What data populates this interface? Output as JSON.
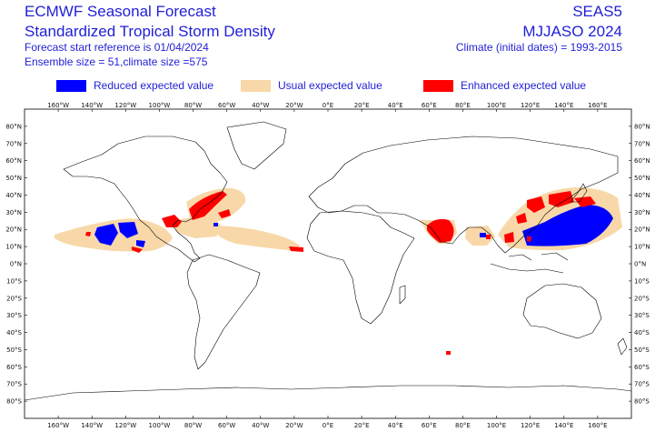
{
  "header": {
    "title_line1": "ECMWF Seasonal Forecast",
    "title_line2": "Standardized Tropical Storm Density",
    "start_reference": "Forecast start reference is 01/04/2024",
    "ensemble": "Ensemble size = 51,climate size =575",
    "system": "SEAS5",
    "period": "MJJASO 2024",
    "climate": "Climate (initial dates) = 1993-2015"
  },
  "legend": [
    {
      "label": "Reduced expected value",
      "color": "#0000ff"
    },
    {
      "label": "Usual expected value",
      "color": "#f8d8a8"
    },
    {
      "label": "Enhanced expected value",
      "color": "#ff0000"
    }
  ],
  "map": {
    "lon_ticks": [
      "160°W",
      "140°W",
      "120°W",
      "100°W",
      "80°W",
      "60°W",
      "40°W",
      "20°W",
      "0°E",
      "20°E",
      "40°E",
      "60°E",
      "80°E",
      "100°E",
      "120°E",
      "140°E",
      "160°E"
    ],
    "lat_ticks": [
      "80°N",
      "70°N",
      "60°N",
      "50°N",
      "40°N",
      "30°N",
      "20°N",
      "10°N",
      "0°N",
      "10°S",
      "20°S",
      "30°S",
      "40°S",
      "50°S",
      "60°S",
      "70°S",
      "80°S"
    ]
  }
}
